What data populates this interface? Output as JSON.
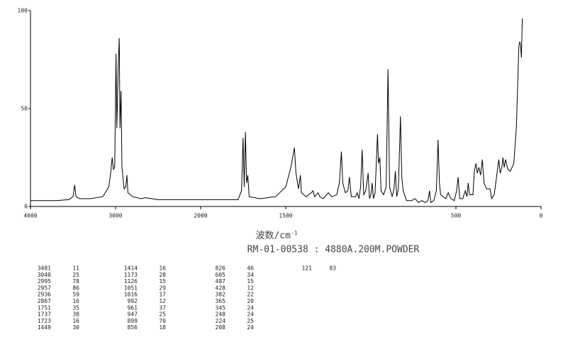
{
  "chart_data": {
    "type": "line",
    "x_label": "波数/cm",
    "x_label_superscript": "-1",
    "subtitle": "RM-01-00538 : 4880A.200M.POWDER",
    "xlim": [
      4000,
      0
    ],
    "x_scale_break": 2000,
    "xticks": [
      4000,
      3000,
      2000,
      1500,
      500,
      0
    ],
    "ylim": [
      0,
      100
    ],
    "yticks": [
      0,
      50,
      100
    ],
    "color": "#000000",
    "x": [
      4000,
      3700,
      3550,
      3500,
      3481,
      3465,
      3420,
      3300,
      3150,
      3080,
      3055,
      3040,
      3025,
      3010,
      2995,
      2985,
      2970,
      2957,
      2948,
      2936,
      2925,
      2900,
      2880,
      2867,
      2855,
      2800,
      2700,
      2650,
      2500,
      2200,
      2000,
      1850,
      1780,
      1760,
      1751,
      1744,
      1737,
      1730,
      1723,
      1715,
      1650,
      1560,
      1500,
      1470,
      1449,
      1440,
      1425,
      1414,
      1408,
      1380,
      1350,
      1340,
      1330,
      1310,
      1300,
      1280,
      1250,
      1230,
      1200,
      1185,
      1173,
      1165,
      1150,
      1135,
      1126,
      1115,
      1090,
      1080,
      1070,
      1060,
      1051,
      1042,
      1030,
      1016,
      1008,
      1000,
      992,
      985,
      975,
      961,
      955,
      947,
      940,
      925,
      910,
      899,
      890,
      875,
      864,
      856,
      848,
      838,
      826,
      818,
      810,
      790,
      760,
      740,
      720,
      700,
      680,
      665,
      655,
      648,
      630,
      615,
      605,
      597,
      590,
      560,
      545,
      530,
      510,
      496,
      487,
      478,
      460,
      445,
      435,
      428,
      420,
      400,
      392,
      382,
      375,
      365,
      355,
      345,
      335,
      320,
      300,
      290,
      275,
      260,
      248,
      240,
      230,
      224,
      216,
      208,
      195,
      180,
      160,
      145,
      130,
      125,
      121,
      115,
      110
    ],
    "values": [
      3,
      3,
      3.5,
      5,
      11,
      5,
      4,
      4,
      5,
      10,
      18,
      25,
      19,
      20,
      78,
      40,
      70,
      86,
      40,
      59,
      20,
      9,
      10,
      16,
      7,
      5,
      4,
      4.5,
      3.5,
      3.5,
      3.5,
      3.5,
      3.5,
      8,
      35,
      10,
      38,
      12,
      16,
      5,
      4,
      5,
      10,
      20,
      30,
      17,
      9,
      16,
      7,
      5,
      7,
      8,
      5,
      7,
      5,
      4,
      7,
      5,
      6,
      12,
      28,
      12,
      7,
      8,
      15,
      5,
      5,
      7,
      4,
      10,
      29,
      6,
      8,
      17,
      4,
      6,
      12,
      4,
      7,
      37,
      22,
      25,
      8,
      6,
      10,
      70,
      10,
      5,
      9,
      18,
      5,
      9,
      46,
      15,
      8,
      3,
      3,
      4,
      2,
      3,
      2,
      3,
      8,
      2,
      3,
      8,
      34,
      12,
      6,
      4,
      7,
      4,
      3,
      8,
      15,
      4,
      4,
      8,
      5,
      12,
      6,
      6,
      18,
      22,
      17,
      20,
      16,
      24,
      12,
      9,
      9,
      4,
      6,
      16,
      24,
      17,
      20,
      25,
      20,
      24,
      19,
      18,
      22,
      40,
      82,
      84,
      83,
      76,
      96
    ],
    "peak_table": [
      [
        3481,
        11
      ],
      [
        3040,
        25
      ],
      [
        2995,
        78
      ],
      [
        2957,
        86
      ],
      [
        2936,
        59
      ],
      [
        2867,
        16
      ],
      [
        1751,
        35
      ],
      [
        1737,
        38
      ],
      [
        1723,
        16
      ],
      [
        1449,
        30
      ],
      [
        1414,
        16
      ],
      [
        1173,
        28
      ],
      [
        1126,
        15
      ],
      [
        1051,
        29
      ],
      [
        1016,
        17
      ],
      [
        992,
        12
      ],
      [
        961,
        37
      ],
      [
        947,
        25
      ],
      [
        899,
        70
      ],
      [
        856,
        18
      ],
      [
        826,
        46
      ],
      [
        605,
        34
      ],
      [
        487,
        15
      ],
      [
        428,
        12
      ],
      [
        382,
        22
      ],
      [
        365,
        20
      ],
      [
        345,
        24
      ],
      [
        248,
        24
      ],
      [
        224,
        25
      ],
      [
        208,
        24
      ],
      [
        121,
        83
      ]
    ]
  }
}
